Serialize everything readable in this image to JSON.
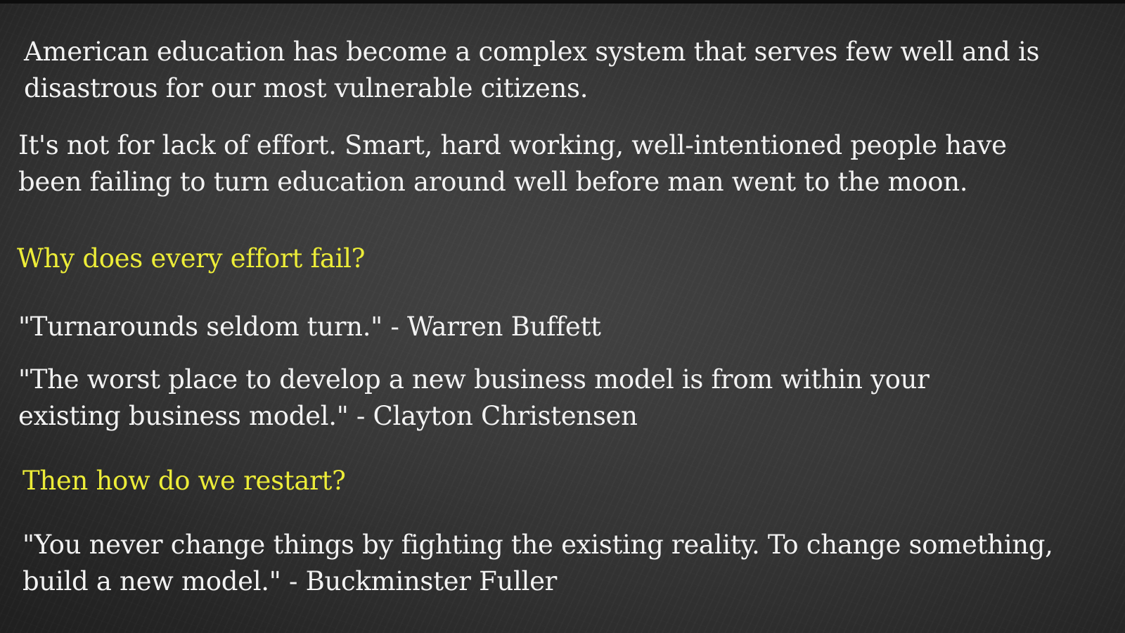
{
  "slide": {
    "paragraph1": {
      "line1": "American education has become a complex system that serves few well and is",
      "line2": "disastrous for our most vulnerable citizens."
    },
    "paragraph2": {
      "line1": "It's not for lack of effort. Smart, hard working, well-intentioned people have",
      "line2": "been failing to turn education around well before man went to the moon."
    },
    "question1": "Why does every effort fail?",
    "quote1": "\"Turnarounds seldom turn.\" - Warren Buffett",
    "quote2": {
      "line1": "\"The worst place to develop a new business model is from within your",
      "line2": "existing business model.\" - Clayton Christensen"
    },
    "question2": "Then how do we restart?",
    "quote3": {
      "line1": "\"You never change things by fighting the existing reality. To change something,",
      "line2": "build a new model.\" - Buckminster Fuller"
    }
  },
  "colors": {
    "background": "#2b2b2b",
    "text": "#f2f2f2",
    "highlight": "#ecec38"
  }
}
